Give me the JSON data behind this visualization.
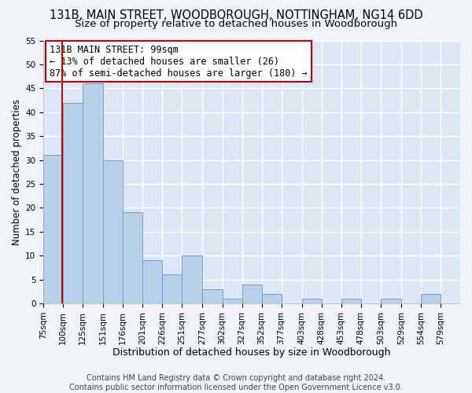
{
  "title": "131B, MAIN STREET, WOODBOROUGH, NOTTINGHAM, NG14 6DD",
  "subtitle": "Size of property relative to detached houses in Woodborough",
  "xlabel": "Distribution of detached houses by size in Woodborough",
  "ylabel": "Number of detached properties",
  "bar_color": "#b8cfe8",
  "bar_edge_color": "#6699cc",
  "background_color": "#dce6f5",
  "grid_color": "#ffffff",
  "annotation_line1": "131B MAIN STREET: 99sqm",
  "annotation_line2": "← 13% of detached houses are smaller (26)",
  "annotation_line3": "87% of semi-detached houses are larger (180) →",
  "annotation_box_edgecolor": "#cc0000",
  "property_line_x": 99,
  "ylim": [
    0,
    55
  ],
  "yticks": [
    0,
    5,
    10,
    15,
    20,
    25,
    30,
    35,
    40,
    45,
    50,
    55
  ],
  "bin_edges": [
    75,
    100,
    125,
    151,
    176,
    201,
    226,
    251,
    277,
    302,
    327,
    352,
    377,
    403,
    428,
    453,
    478,
    503,
    529,
    554,
    579,
    604
  ],
  "bin_labels": [
    "75sqm",
    "100sqm",
    "125sqm",
    "151sqm",
    "176sqm",
    "201sqm",
    "226sqm",
    "251sqm",
    "277sqm",
    "302sqm",
    "327sqm",
    "352sqm",
    "377sqm",
    "403sqm",
    "428sqm",
    "453sqm",
    "478sqm",
    "503sqm",
    "529sqm",
    "554sqm",
    "579sqm"
  ],
  "counts": [
    31,
    42,
    46,
    30,
    19,
    9,
    6,
    10,
    3,
    1,
    4,
    2,
    0,
    1,
    0,
    1,
    0,
    1,
    0,
    2,
    0
  ],
  "footer_text": "Contains HM Land Registry data © Crown copyright and database right 2024.\nContains public sector information licensed under the Open Government Licence v3.0.",
  "title_fontsize": 10.5,
  "subtitle_fontsize": 9.5,
  "xlabel_fontsize": 9,
  "ylabel_fontsize": 8.5,
  "tick_fontsize": 7.5,
  "footer_fontsize": 7,
  "annotation_fontsize": 8.5
}
